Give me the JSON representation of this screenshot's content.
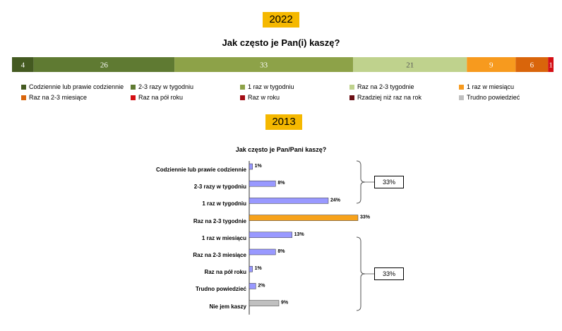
{
  "year_2022": "2022",
  "year_2013": "2013",
  "title_2022": "Jak często je Pan(i) kaszę?",
  "title_2013": "Jak często je Pan/Pani kaszę?",
  "chart_data": [
    {
      "type": "bar",
      "orientation": "horizontal-stacked",
      "title": "Jak często je Pan(i) kaszę?",
      "series": [
        {
          "name": "Codziennie lub prawie codziennie",
          "value": 4,
          "label": "4",
          "color": "#445a21"
        },
        {
          "name": "2-3 razy w tygodniu",
          "value": 26,
          "label": "26",
          "color": "#5f7a32"
        },
        {
          "name": "1 raz w tygodniu",
          "value": 33,
          "label": "33",
          "color": "#8da248"
        },
        {
          "name": "Raz na 2-3 tygodnie",
          "value": 21,
          "label": "21",
          "color": "#bfd28d"
        },
        {
          "name": "1 raz w miesiącu",
          "value": 9,
          "label": "9",
          "color": "#f79a1e"
        },
        {
          "name": "Raz na 2-3 miesiące",
          "value": 6,
          "label": "6",
          "color": "#d9650b"
        },
        {
          "name": "Raz na pół roku",
          "value": 1,
          "label": "1",
          "color": "#d40f14"
        },
        {
          "name": "Raz w roku",
          "value": 0,
          "label": "",
          "color": "#a30d14"
        },
        {
          "name": "Rzadziej niż raz na rok",
          "value": 0,
          "label": "",
          "color": "#6b0f14"
        },
        {
          "name": "Trudno powiedzieć",
          "value": 0,
          "label": "",
          "color": "#bfbfbf"
        }
      ]
    },
    {
      "type": "bar",
      "orientation": "horizontal",
      "title": "Jak często je Pan/Pani kaszę?",
      "categories": [
        "Codziennie lub prawie codziennie",
        "2-3 razy w tygodniu",
        "1 raz w tygodniu",
        "Raz na 2-3 tygodnie",
        "1 raz w miesiącu",
        "Raz na 2-3 miesiące",
        "Raz na pół roku",
        "Trudno powiedzieć",
        "Nie jem kaszy"
      ],
      "values": [
        1,
        8,
        24,
        33,
        13,
        8,
        1,
        2,
        9
      ],
      "labels": [
        "1%",
        "8%",
        "24%",
        "33%",
        "13%",
        "8%",
        "1%",
        "2%",
        "9%"
      ],
      "colors": [
        "#9999ff",
        "#9999ff",
        "#9999ff",
        "#f7a21b",
        "#9999ff",
        "#9999ff",
        "#9999ff",
        "#9999ff",
        "#c0c0c0"
      ],
      "xlim": [
        0,
        33
      ],
      "brackets": [
        {
          "label": "33%"
        },
        {
          "label": "33%"
        }
      ]
    }
  ]
}
